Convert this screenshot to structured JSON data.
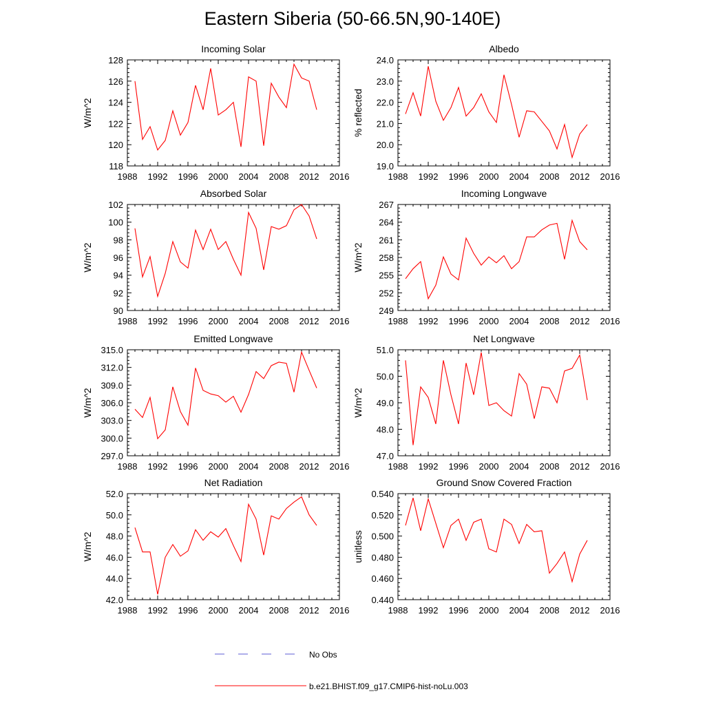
{
  "figure": {
    "title": "Eastern Siberia (50-66.5N,90-140E)",
    "legend": {
      "placement": "bottom-center",
      "items": [
        {
          "label": "No Obs",
          "color": "#5b5bd6",
          "style": "dashed"
        },
        {
          "label": "b.e21.BHIST.f09_g17.CMIP6-hist-noLu.003",
          "color": "#ff0000",
          "style": "solid"
        }
      ]
    }
  },
  "chart_data": [
    {
      "type": "line",
      "title": "Incoming Solar",
      "ylabel": "W/m^2",
      "xlabel": "",
      "xlim": [
        1988,
        2016
      ],
      "ylim": [
        118,
        128
      ],
      "xticks": [
        "1988",
        "1992",
        "1996",
        "2000",
        "2004",
        "2008",
        "2012",
        "2016"
      ],
      "yticks": [
        "118",
        "120",
        "122",
        "124",
        "126",
        "128"
      ],
      "x": [
        1989,
        1990,
        1991,
        1992,
        1993,
        1994,
        1995,
        1996,
        1997,
        1998,
        1999,
        2000,
        2001,
        2002,
        2003,
        2004,
        2005,
        2006,
        2007,
        2008,
        2009,
        2010,
        2011,
        2012,
        2013
      ],
      "series": [
        {
          "name": "b.e21.BHIST.f09_g17.CMIP6-hist-noLu.003",
          "color": "#ff0000",
          "values": [
            126.0,
            120.5,
            121.7,
            119.5,
            120.4,
            123.2,
            120.9,
            122.1,
            125.6,
            123.3,
            127.2,
            122.8,
            123.3,
            124.0,
            119.8,
            126.4,
            126.0,
            119.9,
            125.8,
            124.5,
            123.5,
            127.6,
            126.3,
            126.0,
            123.3
          ]
        }
      ]
    },
    {
      "type": "line",
      "title": "Albedo",
      "ylabel": "% reflected",
      "xlabel": "",
      "xlim": [
        1988,
        2016
      ],
      "ylim": [
        19.0,
        24.0
      ],
      "xticks": [
        "1988",
        "1992",
        "1996",
        "2000",
        "2004",
        "2008",
        "2012",
        "2016"
      ],
      "yticks": [
        "19.0",
        "20.0",
        "21.0",
        "22.0",
        "23.0",
        "24.0"
      ],
      "x": [
        1989,
        1990,
        1991,
        1992,
        1993,
        1994,
        1995,
        1996,
        1997,
        1998,
        1999,
        2000,
        2001,
        2002,
        2003,
        2004,
        2005,
        2006,
        2007,
        2008,
        2009,
        2010,
        2011,
        2012,
        2013
      ],
      "series": [
        {
          "name": "b.e21.BHIST.f09_g17.CMIP6-hist-noLu.003",
          "color": "#ff0000",
          "values": [
            21.45,
            22.45,
            21.35,
            23.7,
            22.05,
            21.15,
            21.75,
            22.7,
            21.35,
            21.75,
            22.4,
            21.55,
            21.05,
            23.3,
            21.9,
            20.35,
            21.6,
            21.55,
            21.1,
            20.65,
            19.8,
            20.95,
            19.4,
            20.5,
            20.95
          ]
        }
      ]
    },
    {
      "type": "line",
      "title": "Absorbed Solar",
      "ylabel": "W/m^2",
      "xlabel": "",
      "xlim": [
        1988,
        2016
      ],
      "ylim": [
        90,
        102
      ],
      "xticks": [
        "1988",
        "1992",
        "1996",
        "2000",
        "2004",
        "2008",
        "2012",
        "2016"
      ],
      "yticks": [
        "90",
        "92",
        "94",
        "96",
        "98",
        "100",
        "102"
      ],
      "x": [
        1989,
        1990,
        1991,
        1992,
        1993,
        1994,
        1995,
        1996,
        1997,
        1998,
        1999,
        2000,
        2001,
        2002,
        2003,
        2004,
        2005,
        2006,
        2007,
        2008,
        2009,
        2010,
        2011,
        2012,
        2013
      ],
      "series": [
        {
          "name": "b.e21.BHIST.f09_g17.CMIP6-hist-noLu.003",
          "color": "#ff0000",
          "values": [
            99.3,
            93.8,
            96.1,
            91.6,
            94.2,
            97.8,
            95.5,
            94.8,
            99.1,
            96.9,
            99.2,
            96.9,
            97.8,
            95.8,
            94.0,
            101.1,
            99.3,
            94.6,
            99.5,
            99.2,
            99.6,
            101.4,
            102.0,
            100.7,
            98.1
          ]
        }
      ]
    },
    {
      "type": "line",
      "title": "Incoming Longwave",
      "ylabel": "W/m^2",
      "xlabel": "",
      "xlim": [
        1988,
        2016
      ],
      "ylim": [
        249,
        267
      ],
      "xticks": [
        "1988",
        "1992",
        "1996",
        "2000",
        "2004",
        "2008",
        "2012",
        "2016"
      ],
      "yticks": [
        "249",
        "252",
        "255",
        "258",
        "261",
        "264",
        "267"
      ],
      "x": [
        1989,
        1990,
        1991,
        1992,
        1993,
        1994,
        1995,
        1996,
        1997,
        1998,
        1999,
        2000,
        2001,
        2002,
        2003,
        2004,
        2005,
        2006,
        2007,
        2008,
        2009,
        2010,
        2011,
        2012,
        2013
      ],
      "series": [
        {
          "name": "b.e21.BHIST.f09_g17.CMIP6-hist-noLu.003",
          "color": "#ff0000",
          "values": [
            254.4,
            256.1,
            257.3,
            251.0,
            253.3,
            258.1,
            255.2,
            254.2,
            261.3,
            258.7,
            256.7,
            258.1,
            257.1,
            258.3,
            256.1,
            257.3,
            261.5,
            261.5,
            262.7,
            263.5,
            263.8,
            257.7,
            264.3,
            260.7,
            259.3
          ]
        }
      ]
    },
    {
      "type": "line",
      "title": "Emitted Longwave",
      "ylabel": "W/m^2",
      "xlabel": "",
      "xlim": [
        1988,
        2016
      ],
      "ylim": [
        297.0,
        315.0
      ],
      "xticks": [
        "1988",
        "1992",
        "1996",
        "2000",
        "2004",
        "2008",
        "2012",
        "2016"
      ],
      "yticks": [
        "297.0",
        "300.0",
        "303.0",
        "306.0",
        "309.0",
        "312.0",
        "315.0"
      ],
      "x": [
        1989,
        1990,
        1991,
        1992,
        1993,
        1994,
        1995,
        1996,
        1997,
        1998,
        1999,
        2000,
        2001,
        2002,
        2003,
        2004,
        2005,
        2006,
        2007,
        2008,
        2009,
        2010,
        2011,
        2012,
        2013
      ],
      "series": [
        {
          "name": "b.e21.BHIST.f09_g17.CMIP6-hist-noLu.003",
          "color": "#ff0000",
          "values": [
            304.9,
            303.5,
            306.9,
            299.9,
            301.4,
            308.7,
            304.5,
            302.2,
            311.9,
            308.1,
            307.5,
            307.2,
            306.1,
            307.1,
            304.4,
            307.4,
            311.3,
            310.1,
            312.3,
            312.9,
            312.7,
            307.8,
            314.6,
            311.5,
            308.5
          ]
        }
      ]
    },
    {
      "type": "line",
      "title": "Net Longwave",
      "ylabel": "W/m^2",
      "xlabel": "",
      "xlim": [
        1988,
        2016
      ],
      "ylim": [
        47.0,
        51.0
      ],
      "xticks": [
        "1988",
        "1992",
        "1996",
        "2000",
        "2004",
        "2008",
        "2012",
        "2016"
      ],
      "yticks": [
        "47.0",
        "48.0",
        "49.0",
        "50.0",
        "51.0"
      ],
      "x": [
        1989,
        1990,
        1991,
        1992,
        1993,
        1994,
        1995,
        1996,
        1997,
        1998,
        1999,
        2000,
        2001,
        2002,
        2003,
        2004,
        2005,
        2006,
        2007,
        2008,
        2009,
        2010,
        2011,
        2012,
        2013
      ],
      "series": [
        {
          "name": "b.e21.BHIST.f09_g17.CMIP6-hist-noLu.003",
          "color": "#ff0000",
          "values": [
            50.6,
            47.4,
            49.6,
            49.2,
            48.2,
            50.6,
            49.3,
            48.2,
            50.5,
            49.3,
            50.9,
            48.9,
            49.0,
            48.7,
            48.5,
            50.1,
            49.7,
            48.4,
            49.6,
            49.55,
            49.0,
            50.2,
            50.3,
            50.8,
            49.1
          ]
        }
      ]
    },
    {
      "type": "line",
      "title": "Net Radiation",
      "ylabel": "W/m^2",
      "xlabel": "",
      "xlim": [
        1988,
        2016
      ],
      "ylim": [
        42.0,
        52.0
      ],
      "xticks": [
        "1988",
        "1992",
        "1996",
        "2000",
        "2004",
        "2008",
        "2012",
        "2016"
      ],
      "yticks": [
        "42.0",
        "44.0",
        "46.0",
        "48.0",
        "50.0",
        "52.0"
      ],
      "x": [
        1989,
        1990,
        1991,
        1992,
        1993,
        1994,
        1995,
        1996,
        1997,
        1998,
        1999,
        2000,
        2001,
        2002,
        2003,
        2004,
        2005,
        2006,
        2007,
        2008,
        2009,
        2010,
        2011,
        2012,
        2013
      ],
      "series": [
        {
          "name": "b.e21.BHIST.f09_g17.CMIP6-hist-noLu.003",
          "color": "#ff0000",
          "values": [
            48.8,
            46.5,
            46.5,
            42.5,
            46.0,
            47.2,
            46.1,
            46.6,
            48.6,
            47.6,
            48.4,
            47.9,
            48.7,
            47.1,
            45.6,
            51.0,
            49.6,
            46.2,
            49.9,
            49.6,
            50.6,
            51.2,
            51.7,
            50.0,
            49.0
          ]
        }
      ]
    },
    {
      "type": "line",
      "title": "Ground Snow Covered Fraction",
      "ylabel": "unitless",
      "xlabel": "",
      "xlim": [
        1988,
        2016
      ],
      "ylim": [
        0.44,
        0.54
      ],
      "xticks": [
        "1988",
        "1992",
        "1996",
        "2000",
        "2004",
        "2008",
        "2012",
        "2016"
      ],
      "yticks": [
        "0.440",
        "0.460",
        "0.480",
        "0.500",
        "0.520",
        "0.540"
      ],
      "x": [
        1989,
        1990,
        1991,
        1992,
        1993,
        1994,
        1995,
        1996,
        1997,
        1998,
        1999,
        2000,
        2001,
        2002,
        2003,
        2004,
        2005,
        2006,
        2007,
        2008,
        2009,
        2010,
        2011,
        2012,
        2013
      ],
      "series": [
        {
          "name": "b.e21.BHIST.f09_g17.CMIP6-hist-noLu.003",
          "color": "#ff0000",
          "values": [
            0.51,
            0.536,
            0.505,
            0.535,
            0.512,
            0.489,
            0.51,
            0.516,
            0.496,
            0.513,
            0.516,
            0.488,
            0.485,
            0.516,
            0.511,
            0.493,
            0.511,
            0.504,
            0.505,
            0.465,
            0.474,
            0.485,
            0.457,
            0.483,
            0.496
          ]
        }
      ]
    }
  ]
}
